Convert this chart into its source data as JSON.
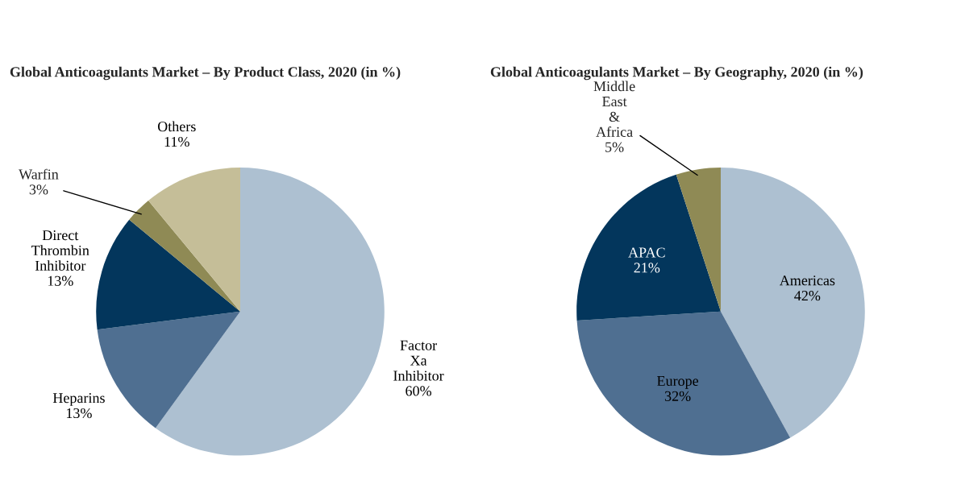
{
  "chart_data": [
    {
      "type": "pie",
      "title": "Global Anticoagulants Market – By Product Class, 2020 (in %)",
      "categories": [
        "Factor Xa Inhibitor",
        "Heparins",
        "Direct Thrombin Inhibitor",
        "Warfin",
        "Others"
      ],
      "values": [
        60,
        13,
        13,
        3,
        11
      ],
      "colors": [
        "#adc0d1",
        "#4f6f91",
        "#03365c",
        "#8f8a55",
        "#c5be98"
      ],
      "value_labels": [
        "60%",
        "13%",
        "13%",
        "3%",
        "11%"
      ],
      "legend": false
    },
    {
      "type": "pie",
      "title": "Global Anticoagulants Market – By Geography, 2020 (in %)",
      "categories": [
        "Americas",
        "Europe",
        "APAC",
        "Middle East & Africa"
      ],
      "values": [
        42,
        32,
        21,
        5
      ],
      "colors": [
        "#adc0d1",
        "#4f6f91",
        "#03365c",
        "#8f8a55"
      ],
      "value_labels": [
        "42%",
        "32%",
        "21%",
        "5%"
      ],
      "legend": false
    }
  ]
}
